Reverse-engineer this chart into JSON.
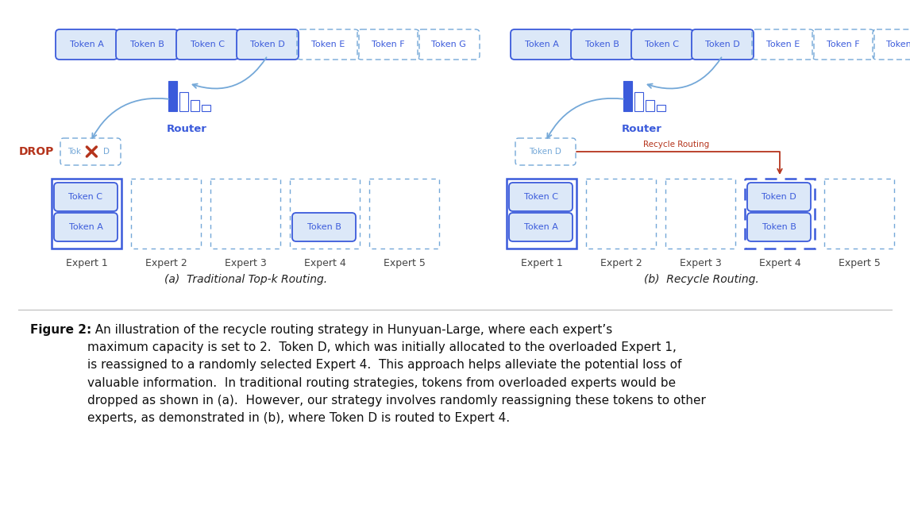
{
  "bg_color": "#ffffff",
  "blue_solid": "#3b5bdb",
  "blue_light": "#74a8d8",
  "blue_fill": "#dce8f8",
  "blue_dashed": "#74a8d8",
  "blue_dark": "#2b4ab0",
  "red_color": "#b5341c",
  "token_labels": [
    "Token A",
    "Token B",
    "Token C",
    "Token D",
    "Token E",
    "Token F",
    "Token G"
  ],
  "expert_labels": [
    "Expert 1",
    "Expert 2",
    "Expert 3",
    "Expert 4",
    "Expert 5"
  ],
  "sub_caption_left": "(a)  Traditional Top-k Routing.",
  "sub_caption_right": "(b)  Recycle Routing.",
  "caption_bold": "Figure 2:",
  "caption_rest": "  An illustration of the recycle routing strategy in Hunyuan-Large, where each expert’s\nmaximum capacity is set to 2.  Token D, which was initially allocated to the overloaded Expert 1,\nis reassigned to a randomly selected Expert 4.  This approach helps alleviate the potential loss of\nvaluable information.  In traditional routing strategies, tokens from overloaded experts would be\ndropped as shown in (a).  However, our strategy involves randomly reassigning these tokens to other\nexperts, as demonstrated in (b), where Token D is routed to Expert 4."
}
